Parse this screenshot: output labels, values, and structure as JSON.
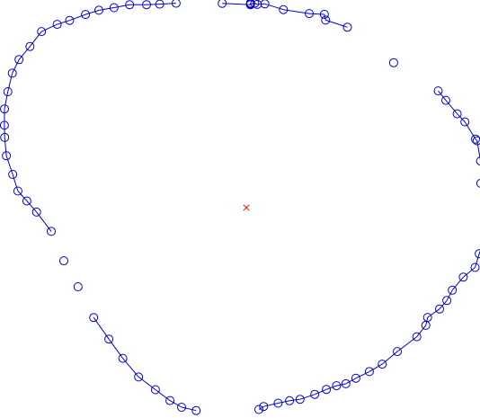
{
  "chart_data": {
    "type": "scatter",
    "title": "",
    "xlabel": "",
    "ylabel": "",
    "grid": false,
    "legend": "none",
    "axes_visible": false,
    "aspect": "equal",
    "xlim": [
      -1.07,
      1.07
    ],
    "ylim": [
      -0.99,
      0.99
    ],
    "center": {
      "x": 0,
      "y": 0,
      "marker": "x",
      "color": "#ff0000"
    },
    "series": [
      {
        "marker": "circle-open",
        "color": "#0000cc",
        "line": "connected-ring",
        "x": [
          -0.0533,
          0.0091,
          0.0094,
          0.0095,
          0.0188,
          0.0245,
          0.0412,
          0.0822,
          0.1395,
          0.1729,
          0.1758,
          0.2242,
          0.3264,
          0.4253,
          0.4423,
          0.4674,
          0.4844,
          0.508,
          0.5114,
          0.5191,
          0.5197,
          0.5322,
          0.5352,
          0.5385,
          0.5372,
          0.5327,
          0.5162,
          0.507,
          0.4809,
          0.4565,
          0.4445,
          0.4283,
          0.4018,
          0.3979,
          0.3778,
          0.3346,
          0.3012,
          0.2728,
          0.2429,
          0.2207,
          0.2,
          0.1774,
          0.1517,
          0.1191,
          0.0959,
          0.0706,
          0.0384,
          0.0278,
          -0.1111,
          -0.1434,
          -0.1692,
          -0.2014,
          -0.2386,
          -0.2738,
          -0.3045,
          -0.3382,
          -0.3729,
          -0.4044,
          -0.4322,
          -0.4648,
          -0.4862,
          -0.5062,
          -0.5177,
          -0.5316,
          -0.5354,
          -0.5361,
          -0.5359,
          -0.5284,
          -0.5186,
          -0.5036,
          -0.4795,
          -0.4538,
          -0.4192,
          -0.3917,
          -0.3563,
          -0.3266,
          -0.2932,
          -0.2586,
          -0.2211,
          -0.1921,
          -0.1555
        ],
        "y": [
          0.4962,
          0.4931,
          0.4967,
          0.495,
          0.4965,
          0.4937,
          0.495,
          0.4811,
          0.4715,
          0.4695,
          0.4554,
          0.4382,
          0.352,
          0.2837,
          0.2606,
          0.2279,
          0.2084,
          0.1663,
          0.1624,
          0.1134,
          0.0592,
          0.0564,
          0.0143,
          -0.0087,
          -0.0335,
          -0.0622,
          -0.1121,
          -0.1453,
          -0.1687,
          -0.2004,
          -0.2255,
          -0.2461,
          -0.2667,
          -0.2858,
          -0.3136,
          -0.3495,
          -0.3802,
          -0.3983,
          -0.4143,
          -0.4278,
          -0.4325,
          -0.4414,
          -0.4534,
          -0.4654,
          -0.469,
          -0.4748,
          -0.483,
          -0.4901,
          -0.4927,
          -0.4847,
          -0.4686,
          -0.4422,
          -0.4114,
          -0.366,
          -0.3193,
          -0.2669,
          -0.1922,
          -0.1291,
          -0.0577,
          -0.0106,
          0.0162,
          0.0405,
          0.0808,
          0.1259,
          0.1706,
          0.2001,
          0.2397,
          0.2816,
          0.3266,
          0.3597,
          0.3914,
          0.4277,
          0.4452,
          0.4547,
          0.4693,
          0.4794,
          0.4857,
          0.4929,
          0.493,
          0.4943,
          0.4965
        ]
      }
    ]
  }
}
